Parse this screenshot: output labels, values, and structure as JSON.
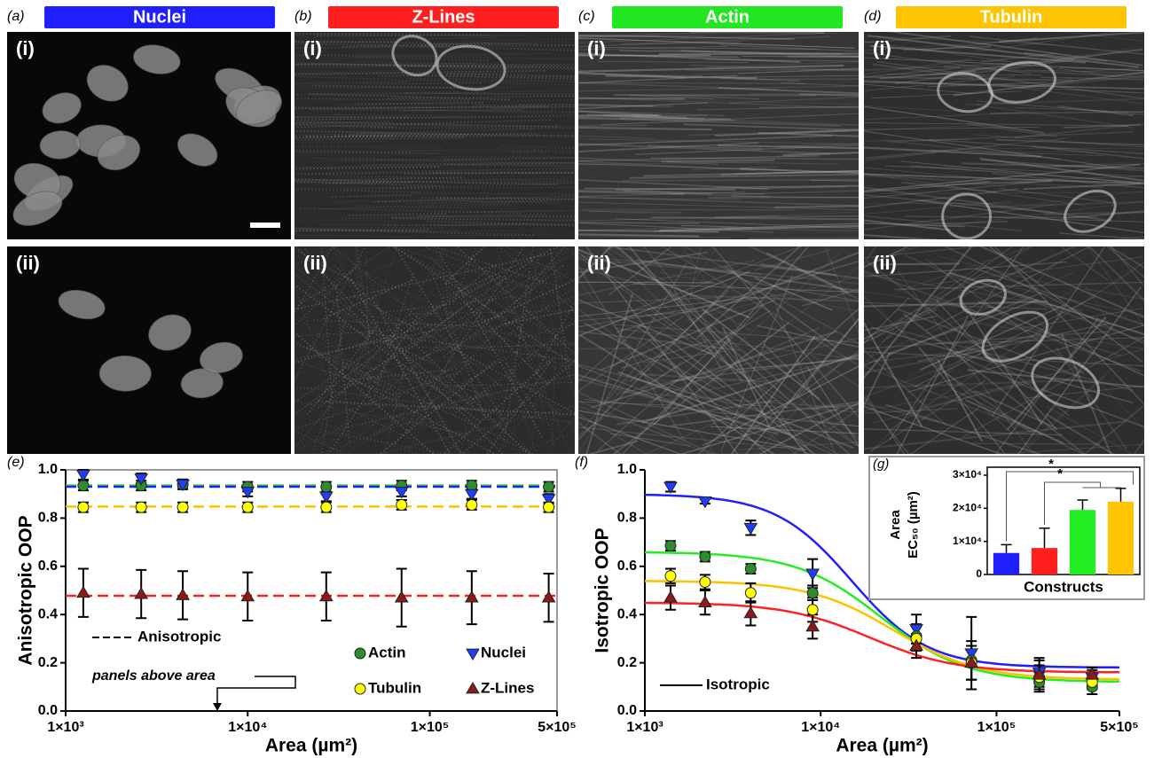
{
  "panels": [
    {
      "letter": "(a)",
      "title": "Nuclei",
      "color": "#1f1fff",
      "rows": [
        "(i)",
        "(ii)"
      ]
    },
    {
      "letter": "(b)",
      "title": "Z-Lines",
      "color": "#ff1f1f",
      "rows": [
        "(i)",
        "(ii)"
      ]
    },
    {
      "letter": "(c)",
      "title": "Actin",
      "color": "#22e622",
      "rows": [
        "(i)",
        "(ii)"
      ]
    },
    {
      "letter": "(d)",
      "title": "Tubulin",
      "color": "#ffc400",
      "rows": [
        "(i)",
        "(ii)"
      ]
    }
  ],
  "chart_data": [
    {
      "type": "scatter",
      "label": "(e)",
      "x_label": "Area (µm²)",
      "y_label": "Anisotropic OOP",
      "log_x": true,
      "box": true,
      "legend": true,
      "xlim": [
        1000,
        500000
      ],
      "xticks": [
        {
          "value": 1000,
          "label": "1×10³"
        },
        {
          "value": 10000,
          "label": "1×10⁴"
        },
        {
          "value": 100000,
          "label": "1×10⁵"
        },
        {
          "value": 500000,
          "label": "5×10⁵"
        }
      ],
      "ylim": [
        0,
        1
      ],
      "yticks": [
        {
          "value": 0,
          "label": "0.0"
        },
        0.2,
        0.4,
        0.6,
        0.8,
        {
          "value": 1,
          "label": "1.0"
        }
      ],
      "x": [
        1250,
        2600,
        4400,
        10000,
        27000,
        70000,
        170000,
        450000
      ],
      "series": [
        {
          "name": "Actin",
          "color": "#2e8b2e",
          "marker": "circle",
          "line_color": "#22dd22",
          "reference": 0.935,
          "values": [
            0.935,
            0.935,
            0.94,
            0.93,
            0.93,
            0.935,
            0.935,
            0.93
          ],
          "errors": [
            0.02,
            0.02,
            0.02,
            0.02,
            0.02,
            0.02,
            0.02,
            0.02
          ]
        },
        {
          "name": "Nuclei",
          "color": "#1f3cff",
          "marker": "down",
          "line_color": "#2020ff",
          "reference": 0.93,
          "values": [
            0.98,
            0.965,
            0.94,
            0.91,
            0.89,
            0.91,
            0.9,
            0.88
          ],
          "errors": [
            0.02,
            0.02,
            0.02,
            0.02,
            0.02,
            0.02,
            0.02,
            0.02
          ]
        },
        {
          "name": "Tubulin",
          "color": "#ffff00",
          "marker": "circle",
          "line_color": "#ffc000",
          "reference": 0.848,
          "values": [
            0.845,
            0.845,
            0.845,
            0.845,
            0.845,
            0.855,
            0.855,
            0.845
          ],
          "errors": [
            0.02,
            0.02,
            0.02,
            0.02,
            0.02,
            0.02,
            0.02,
            0.02
          ]
        },
        {
          "name": "Z-Lines",
          "color": "#8b1a1a",
          "marker": "up",
          "line_color": "#ff2222",
          "reference": 0.478,
          "values": [
            0.49,
            0.485,
            0.48,
            0.475,
            0.475,
            0.47,
            0.47,
            0.47
          ],
          "errors": [
            0.1,
            0.1,
            0.1,
            0.1,
            0.1,
            0.12,
            0.11,
            0.1
          ]
        }
      ],
      "reference_label": "Anisotropic",
      "annotation": "panels above area"
    },
    {
      "type": "scatter",
      "label": "(f)",
      "x_label": "Area (µm²)",
      "y_label": "Isotropic OOP",
      "log_x": true,
      "box": false,
      "legend": false,
      "xlim": [
        1000,
        500000
      ],
      "xticks": [
        {
          "value": 1000,
          "label": "1×10³"
        },
        {
          "value": 10000,
          "label": "1×10⁴"
        },
        {
          "value": 100000,
          "label": "1×10⁵"
        },
        {
          "value": 500000,
          "label": "5×10⁵"
        }
      ],
      "ylim": [
        0,
        1
      ],
      "yticks": [
        {
          "value": 0,
          "label": "0.0"
        },
        0.2,
        0.4,
        0.6,
        0.8,
        {
          "value": 1,
          "label": "1.0"
        }
      ],
      "x": [
        1400,
        2200,
        4000,
        9000,
        35000,
        72000,
        175000,
        350000
      ],
      "series": [
        {
          "name": "Nuclei",
          "color": "#1f3cff",
          "marker": "down",
          "line_color": "#1f1fff",
          "values": [
            0.93,
            0.87,
            0.76,
            0.57,
            0.34,
            0.24,
            0.16,
            0.14
          ],
          "errors": [
            0.02,
            0.01,
            0.03,
            0.06,
            0.06,
            0.15,
            0.06,
            0.03
          ],
          "fit": {
            "top": 0.9,
            "bottom": 0.18,
            "ec50": 15000,
            "hill": 2
          }
        },
        {
          "name": "Actin",
          "color": "#2e8b2e",
          "marker": "circle",
          "line_color": "#22ee22",
          "values": [
            0.685,
            0.64,
            0.59,
            0.49,
            0.31,
            0.21,
            0.12,
            0.1
          ],
          "errors": [
            0.02,
            0.02,
            0.02,
            0.03,
            0.05,
            0.08,
            0.04,
            0.03
          ],
          "fit": {
            "top": 0.66,
            "bottom": 0.12,
            "ec50": 22000,
            "hill": 1.8
          }
        },
        {
          "name": "Tubulin",
          "color": "#ffff00",
          "marker": "circle",
          "line_color": "#ffc000",
          "values": [
            0.56,
            0.535,
            0.49,
            0.42,
            0.3,
            0.2,
            0.14,
            0.12
          ],
          "errors": [
            0.03,
            0.03,
            0.04,
            0.05,
            0.05,
            0.07,
            0.05,
            0.03
          ],
          "fit": {
            "top": 0.54,
            "bottom": 0.13,
            "ec50": 26000,
            "hill": 1.8
          }
        },
        {
          "name": "Z-Lines",
          "color": "#8b1a1a",
          "marker": "up",
          "line_color": "#ff2222",
          "values": [
            0.47,
            0.45,
            0.405,
            0.35,
            0.27,
            0.2,
            0.15,
            0.15
          ],
          "errors": [
            0.05,
            0.05,
            0.05,
            0.05,
            0.05,
            0.07,
            0.06,
            0.03
          ],
          "fit": {
            "top": 0.45,
            "bottom": 0.16,
            "ec50": 19000,
            "hill": 1.8
          }
        }
      ],
      "fit_label": "Isotropic"
    },
    {
      "type": "bar",
      "label": "(g)",
      "x_label": "Constructs",
      "y_label": [
        "Area",
        "EC₅₀ (µm²)"
      ],
      "categories": [
        null,
        null,
        null,
        null
      ],
      "values": [
        6500,
        8000,
        19500,
        22000
      ],
      "errors": [
        2500,
        6000,
        3000,
        4000
      ],
      "colors": [
        "#1f1fff",
        "#ff1f1f",
        "#22ee22",
        "#ffc400"
      ],
      "ylim": [
        0,
        30000
      ],
      "yticks": [
        0,
        {
          "value": 10000,
          "label": "1×10⁴"
        },
        {
          "value": 20000,
          "label": "2×10⁴"
        },
        {
          "value": 30000,
          "label": "3×10⁴"
        }
      ],
      "annotations": [
        "*",
        "*"
      ]
    }
  ]
}
